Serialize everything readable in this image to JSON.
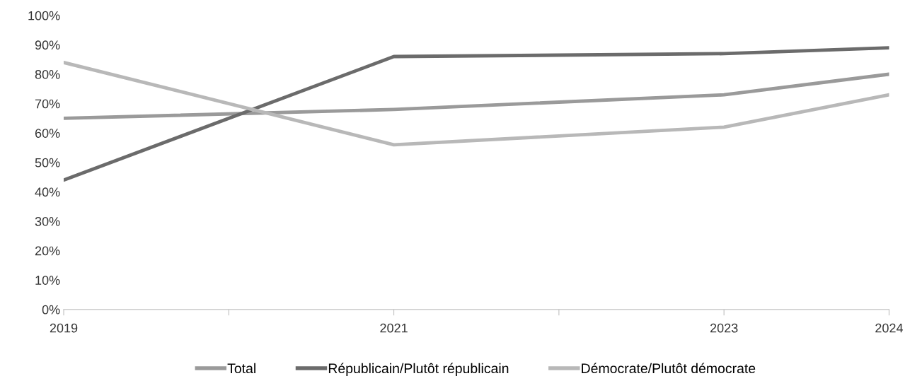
{
  "chart_data": {
    "type": "line",
    "x": [
      2019,
      2021,
      2023,
      2024
    ],
    "series": [
      {
        "name": "Total",
        "color": "#9a9a9a",
        "values": [
          65,
          68,
          73,
          80
        ]
      },
      {
        "name": "Républicain/Plutôt républicain",
        "color": "#6b6b6b",
        "values": [
          44,
          86,
          87,
          89
        ]
      },
      {
        "name": "Démocrate/Plutôt démocrate",
        "color": "#b8b8b8",
        "values": [
          84,
          56,
          62,
          73
        ]
      }
    ],
    "xlim": [
      2019,
      2024
    ],
    "xticks": [
      2019,
      {
        "value": 2020,
        "label": null
      },
      2021,
      {
        "value": 2022,
        "label": null
      },
      2023,
      2024
    ],
    "ylim": [
      0,
      100
    ],
    "yticks": [
      {
        "value": 0,
        "label": "0%"
      },
      {
        "value": 10,
        "label": "10%"
      },
      {
        "value": 20,
        "label": "20%"
      },
      {
        "value": 30,
        "label": "30%"
      },
      {
        "value": 40,
        "label": "40%"
      },
      {
        "value": 50,
        "label": "50%"
      },
      {
        "value": 60,
        "label": "60%"
      },
      {
        "value": 70,
        "label": "70%"
      },
      {
        "value": 80,
        "label": "80%"
      },
      {
        "value": 90,
        "label": "90%"
      },
      {
        "value": 100,
        "label": "100%"
      }
    ],
    "grid": false,
    "legend": "bottom",
    "marker": "none",
    "line_style": "solid"
  }
}
